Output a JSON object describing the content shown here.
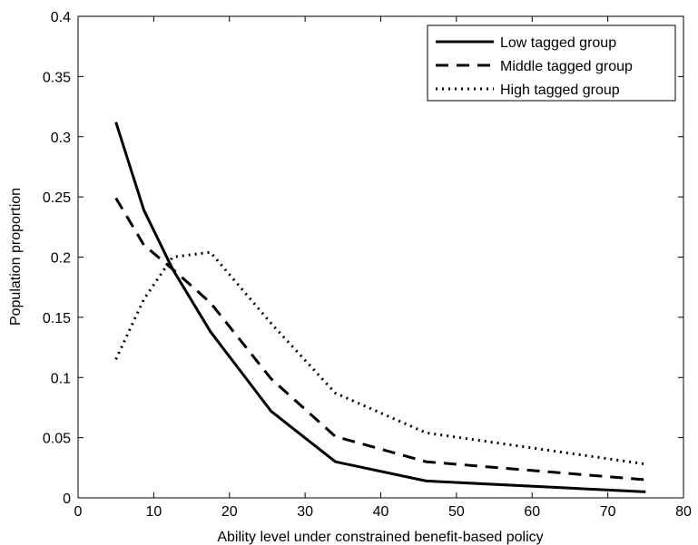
{
  "chart_data": {
    "type": "line",
    "xlabel": "Ability level under constrained benefit-based policy",
    "ylabel": "Population proportion",
    "xlim": [
      0,
      80
    ],
    "ylim": [
      0,
      0.4
    ],
    "xticks": [
      "0",
      "10",
      "20",
      "30",
      "40",
      "50",
      "60",
      "70",
      "80"
    ],
    "yticks": [
      "0",
      "0.05",
      "0.1",
      "0.15",
      "0.2",
      "0.25",
      "0.3",
      "0.35",
      "0.4"
    ],
    "grid": false,
    "legend_position": "top-right",
    "series": [
      {
        "name": "Low tagged group",
        "style": "solid",
        "color": "#000000",
        "x": [
          5,
          8.7,
          12.5,
          17.5,
          25.5,
          34,
          46,
          75
        ],
        "y": [
          0.312,
          0.239,
          0.19,
          0.138,
          0.072,
          0.03,
          0.014,
          0.005
        ]
      },
      {
        "name": "Middle tagged group",
        "style": "dashed",
        "color": "#000000",
        "x": [
          5,
          8.7,
          12.5,
          17.5,
          25.5,
          34,
          46,
          75
        ],
        "y": [
          0.249,
          0.21,
          0.19,
          0.162,
          0.099,
          0.051,
          0.03,
          0.015
        ]
      },
      {
        "name": "High tagged group",
        "style": "dotted",
        "color": "#000000",
        "x": [
          5,
          8.7,
          12.5,
          17.5,
          25.5,
          34,
          46,
          75
        ],
        "y": [
          0.115,
          0.165,
          0.2,
          0.204,
          0.145,
          0.087,
          0.054,
          0.028
        ]
      }
    ]
  }
}
